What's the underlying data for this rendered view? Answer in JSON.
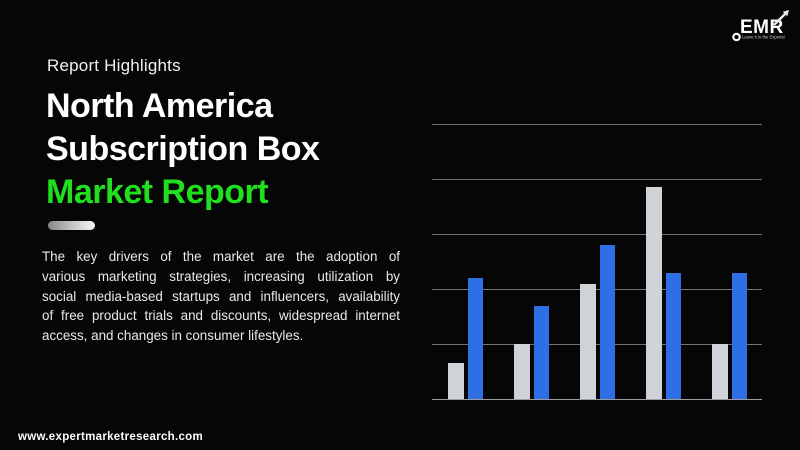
{
  "colors": {
    "background": "#060606",
    "title_white": "#ffffff",
    "accent_green": "#1fdf1f",
    "paragraph_text": "#e9e9e9",
    "gridline": "#737373",
    "axis_line": "#9c9c9c",
    "bar_gray": "#cfd2d6",
    "bar_blue": "#2f6fe6"
  },
  "header": {
    "eyebrow": "Report Highlights",
    "title_line1": "North America",
    "title_line2": "Subscription Box",
    "title_line3": "Market Report"
  },
  "body": {
    "paragraph": "The key drivers of the market are the adoption of various marketing strategies, increasing utilization by social media-based startups and influencers, availability of free product trials and discounts, widespread internet access, and changes in consumer lifestyles.",
    "lines": [
      "The key drivers of the market are the adoption of",
      "various marketing strategies, increasing utilization by",
      "social media-based startups and influencers, availability",
      "of free product trials and discounts, widespread internet",
      "access, and changes in consumer lifestyles."
    ]
  },
  "logo": {
    "text": "EMR",
    "tagline": "Leave it to the Experts!"
  },
  "footer": {
    "website": "www.expertmarketresearch.com"
  },
  "chart_data": {
    "type": "bar",
    "title": "",
    "xlabel": "",
    "ylabel": "",
    "categories": [
      "",
      "",
      "",
      "",
      ""
    ],
    "series": [
      {
        "name": "gray-series",
        "color": "#cfd2d6",
        "values": [
          13,
          20,
          42,
          77,
          20
        ]
      },
      {
        "name": "blue-series",
        "color": "#2f6fe6",
        "values": [
          44,
          34,
          56,
          46,
          46
        ]
      }
    ],
    "ylim": [
      0,
      100
    ],
    "gridline_step": 20,
    "grid": true,
    "tick_labels_visible": false,
    "legend_visible": false
  }
}
